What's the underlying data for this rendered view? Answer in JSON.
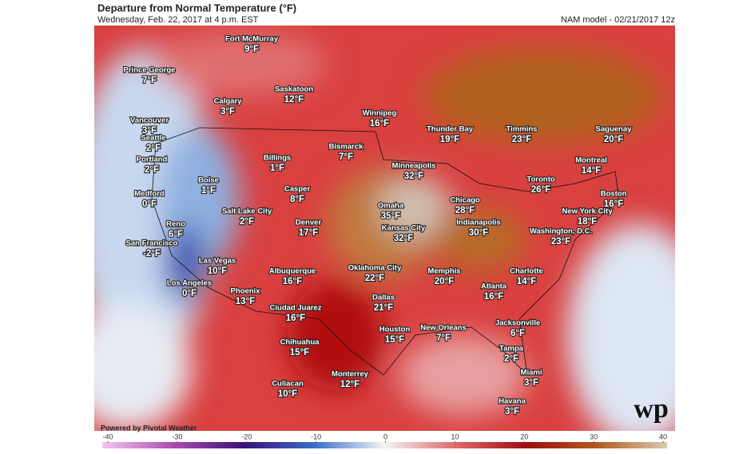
{
  "header": {
    "title": "Departure from Normal Temperature (°F)",
    "subtitle": "Wednesday, Feb. 22, 2017 at 4 p.m. EST",
    "model": "NAM model - 02/21/2017 12z"
  },
  "cities": [
    {
      "name": "Fort McMurray",
      "departure": "9°F"
    },
    {
      "name": "Prince George",
      "departure": "7°F"
    },
    {
      "name": "Saskatoon",
      "departure": "12°F"
    },
    {
      "name": "Calgary",
      "departure": "3°F"
    },
    {
      "name": "Winnipeg",
      "departure": "16°F"
    },
    {
      "name": "Thunder Bay",
      "departure": "19°F"
    },
    {
      "name": "Timmins",
      "departure": "23°F"
    },
    {
      "name": "Saguenay",
      "departure": "20°F"
    },
    {
      "name": "Vancouver",
      "departure": "3°F"
    },
    {
      "name": "Seattle",
      "departure": "2°F"
    },
    {
      "name": "Bismarck",
      "departure": "7°F"
    },
    {
      "name": "Billings",
      "departure": "1°F"
    },
    {
      "name": "Portland",
      "departure": "2°F"
    },
    {
      "name": "Minneapolis",
      "departure": "32°F"
    },
    {
      "name": "Montreal",
      "departure": "14°F"
    },
    {
      "name": "Toronto",
      "departure": "26°F"
    },
    {
      "name": "Boise",
      "departure": "1°F"
    },
    {
      "name": "Casper",
      "departure": "8°F"
    },
    {
      "name": "Medford",
      "departure": "0°F"
    },
    {
      "name": "Boston",
      "departure": "16°F"
    },
    {
      "name": "Chicago",
      "departure": "28°F"
    },
    {
      "name": "Omaha",
      "departure": "35°F"
    },
    {
      "name": "New York City",
      "departure": "18°F"
    },
    {
      "name": "Salt Lake City",
      "departure": "2°F"
    },
    {
      "name": "Reno",
      "departure": "6°F"
    },
    {
      "name": "Denver",
      "departure": "17°F"
    },
    {
      "name": "Indianapolis",
      "departure": "30°F"
    },
    {
      "name": "Kansas City",
      "departure": "32°F"
    },
    {
      "name": "Washington, D.C.",
      "departure": "23°F"
    },
    {
      "name": "San Francisco",
      "departure": "-2°F"
    },
    {
      "name": "Las Vegas",
      "departure": "10°F"
    },
    {
      "name": "Albuquerque",
      "departure": "16°F"
    },
    {
      "name": "Oklahoma City",
      "departure": "22°F"
    },
    {
      "name": "Memphis",
      "departure": "20°F"
    },
    {
      "name": "Charlotte",
      "departure": "14°F"
    },
    {
      "name": "Phoenix",
      "departure": "13°F"
    },
    {
      "name": "Los Angeles",
      "departure": "0°F"
    },
    {
      "name": "Atlanta",
      "departure": "16°F"
    },
    {
      "name": "Dallas",
      "departure": "21°F"
    },
    {
      "name": "Ciudad Juarez",
      "departure": "16°F"
    },
    {
      "name": "Jacksonville",
      "departure": "6°F"
    },
    {
      "name": "Houston",
      "departure": "15°F"
    },
    {
      "name": "New Orleans",
      "departure": "7°F"
    },
    {
      "name": "Chihuahua",
      "departure": "15°F"
    },
    {
      "name": "Tampa",
      "departure": "2°F"
    },
    {
      "name": "Miami",
      "departure": "3°F"
    },
    {
      "name": "Monterrey",
      "departure": "12°F"
    },
    {
      "name": "Culiacan",
      "departure": "10°F"
    },
    {
      "name": "Havana",
      "departure": "3°F"
    }
  ],
  "credit": "Powered by Pivotal Weather",
  "logo": "wp",
  "colorbar": {
    "lim": [
      -40,
      40
    ],
    "ticks": [
      -40,
      -30,
      -20,
      -10,
      0,
      10,
      20,
      30,
      40
    ]
  }
}
